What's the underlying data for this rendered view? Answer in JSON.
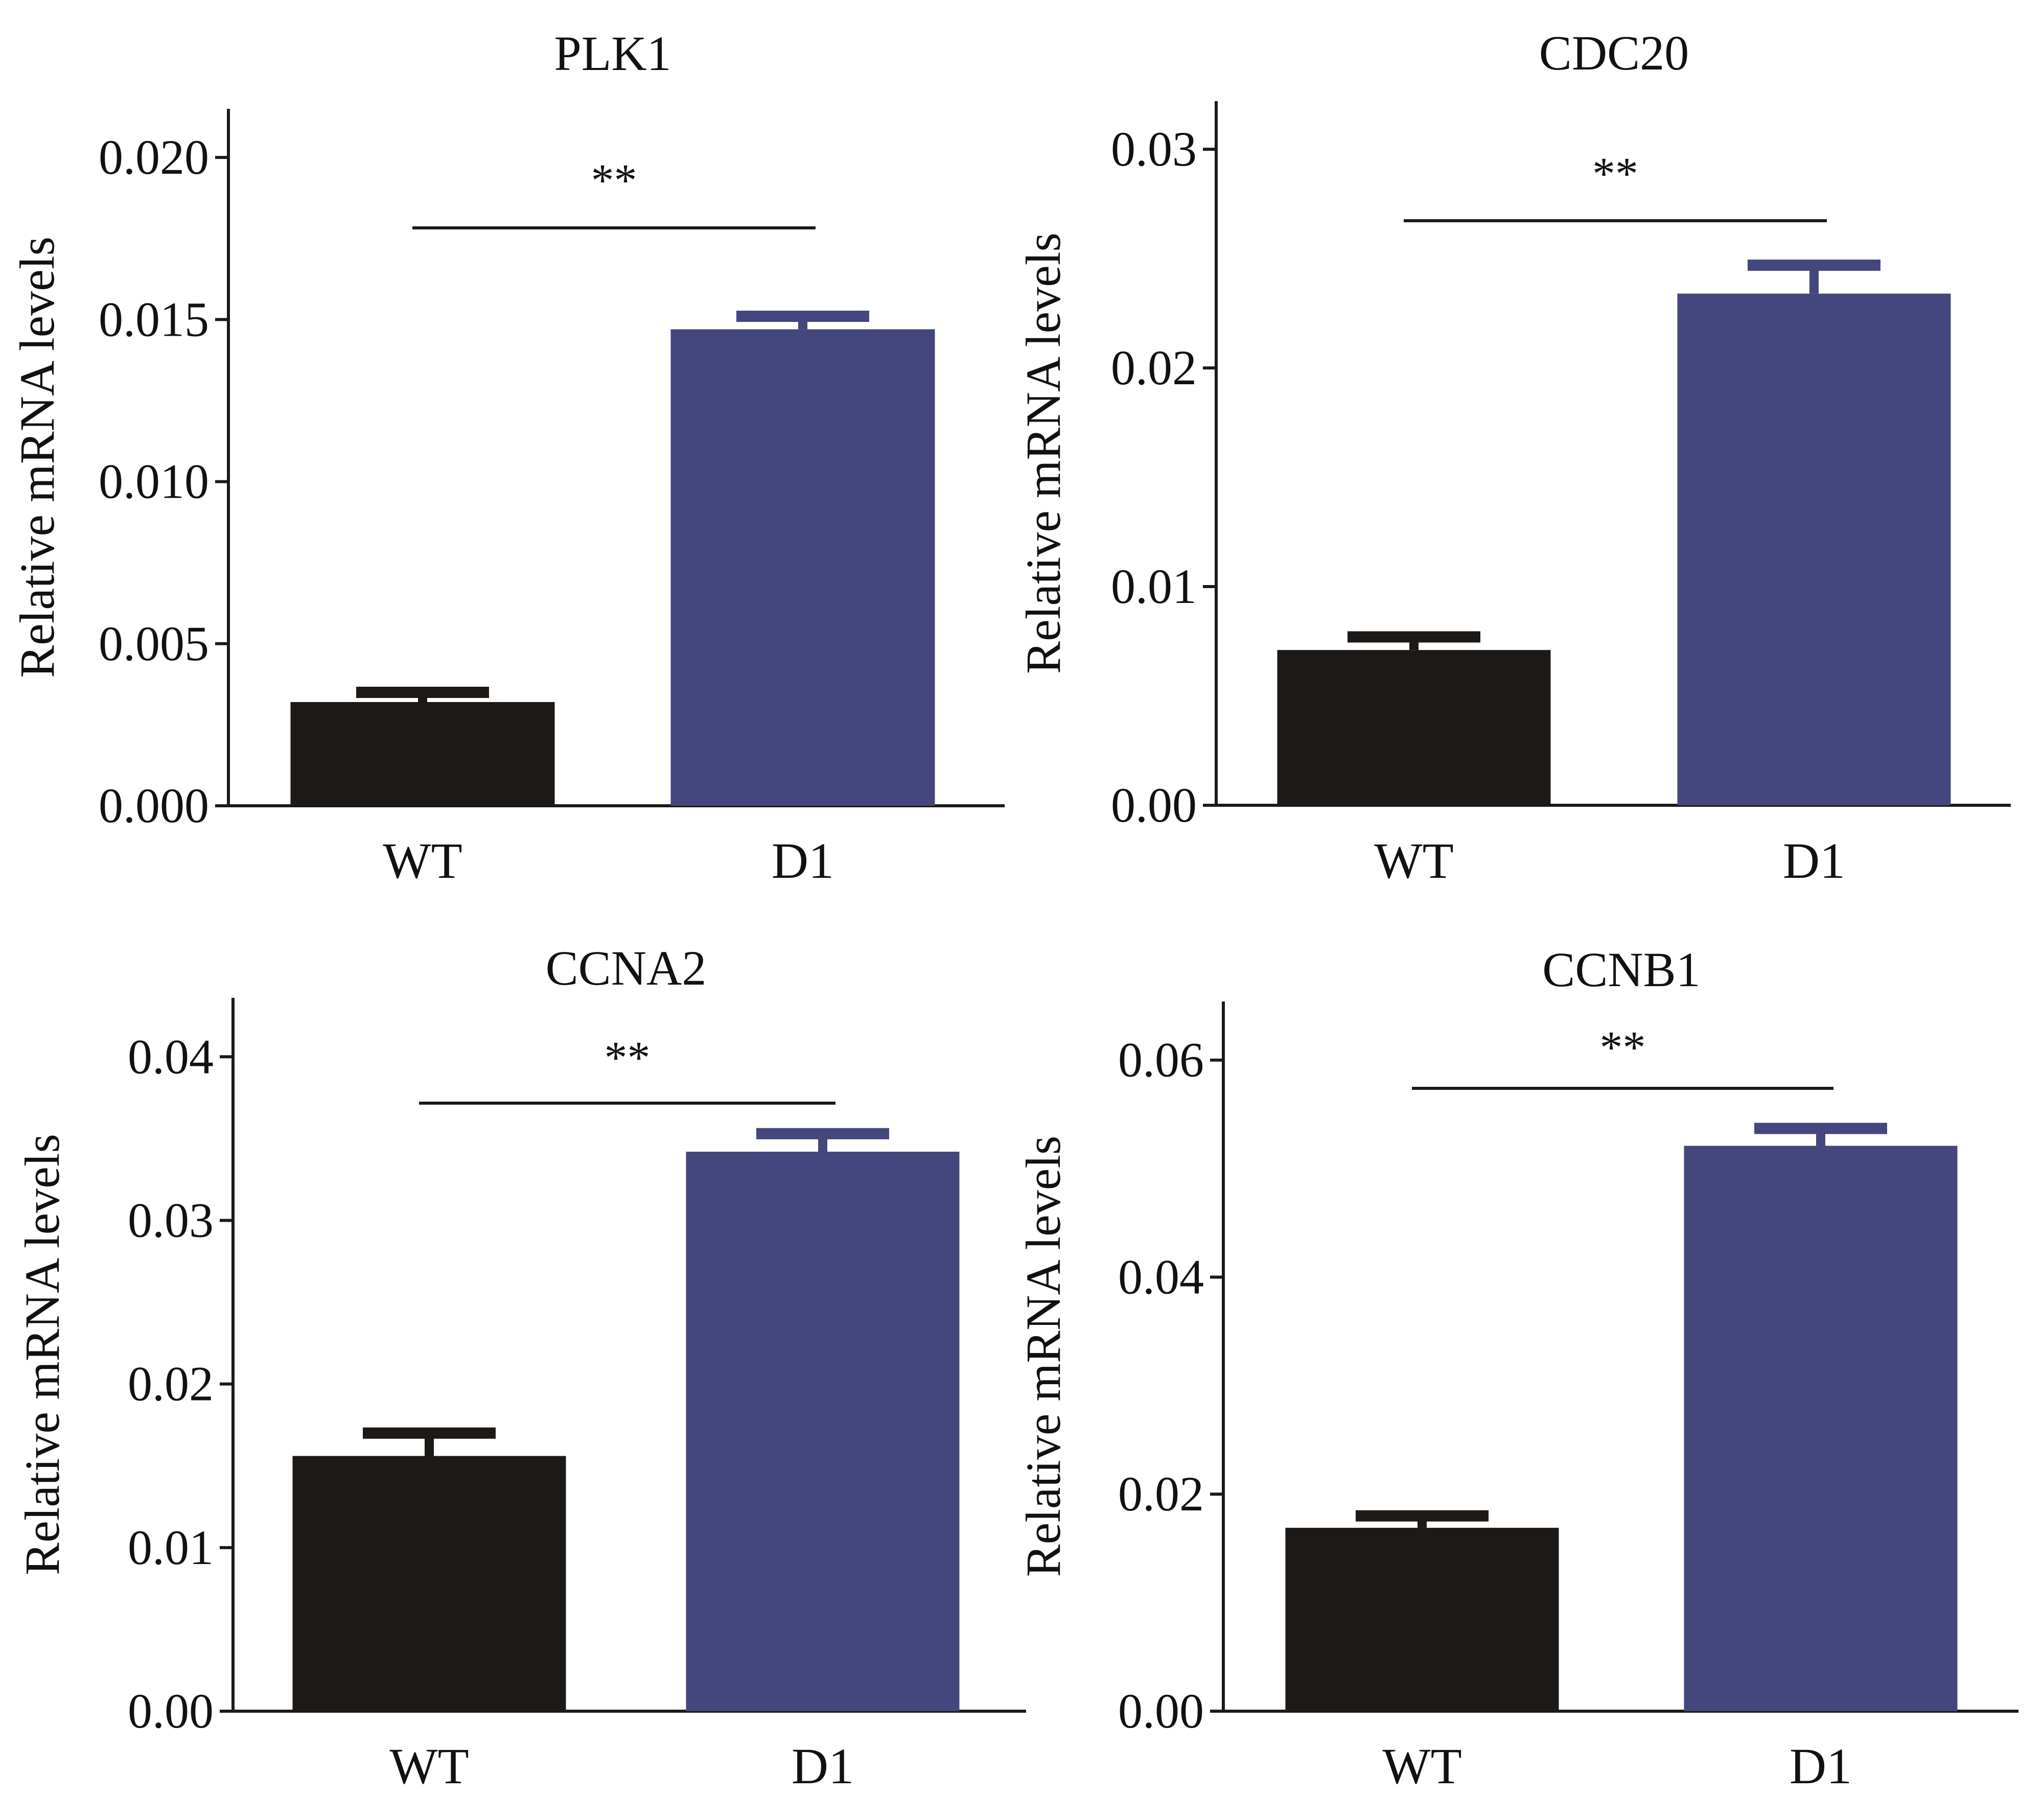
{
  "colors": {
    "WT": "#1c1917",
    "D1": "#44477e",
    "axis": "#1a1a1a"
  },
  "chart_data": [
    {
      "type": "bar",
      "title": "PLK1",
      "ylabel": "Relative mRNA levels",
      "xlabel": "",
      "categories": [
        "WT",
        "D1"
      ],
      "values": [
        0.0032,
        0.0147
      ],
      "errors": [
        0.0003,
        0.0004
      ],
      "ylim": [
        0,
        0.0215
      ],
      "yticks": [
        0,
        0.005,
        0.01,
        0.015,
        0.02
      ],
      "ytick_labels": [
        "0.000",
        "0.005",
        "0.010",
        "0.015",
        "0.020"
      ],
      "significance": "**"
    },
    {
      "type": "bar",
      "title": "CDC20",
      "ylabel": "Relative mRNA levels",
      "xlabel": "",
      "categories": [
        "WT",
        "D1"
      ],
      "values": [
        0.0071,
        0.0234
      ],
      "errors": [
        0.0006,
        0.0013
      ],
      "ylim": [
        0,
        0.0322
      ],
      "yticks": [
        0,
        0.01,
        0.02,
        0.03
      ],
      "ytick_labels": [
        "0.00",
        "0.01",
        "0.02",
        "0.03"
      ],
      "significance": "**"
    },
    {
      "type": "bar",
      "title": "CCNA2",
      "ylabel": "Relative mRNA levels",
      "xlabel": "",
      "categories": [
        "WT",
        "D1"
      ],
      "values": [
        0.0156,
        0.0342
      ],
      "errors": [
        0.0014,
        0.0011
      ],
      "ylim": [
        0,
        0.0436
      ],
      "yticks": [
        0,
        0.01,
        0.02,
        0.03,
        0.04
      ],
      "ytick_labels": [
        "0.00",
        "0.01",
        "0.02",
        "0.03",
        "0.04"
      ],
      "significance": "**"
    },
    {
      "type": "bar",
      "title": "CCNB1",
      "ylabel": "Relative mRNA levels",
      "xlabel": "",
      "categories": [
        "WT",
        "D1"
      ],
      "values": [
        0.0169,
        0.0521
      ],
      "errors": [
        0.0011,
        0.0016
      ],
      "ylim": [
        0,
        0.0654
      ],
      "yticks": [
        0,
        0.02,
        0.04,
        0.06
      ],
      "ytick_labels": [
        "0.00",
        "0.02",
        "0.04",
        "0.06"
      ],
      "significance": "**"
    }
  ]
}
